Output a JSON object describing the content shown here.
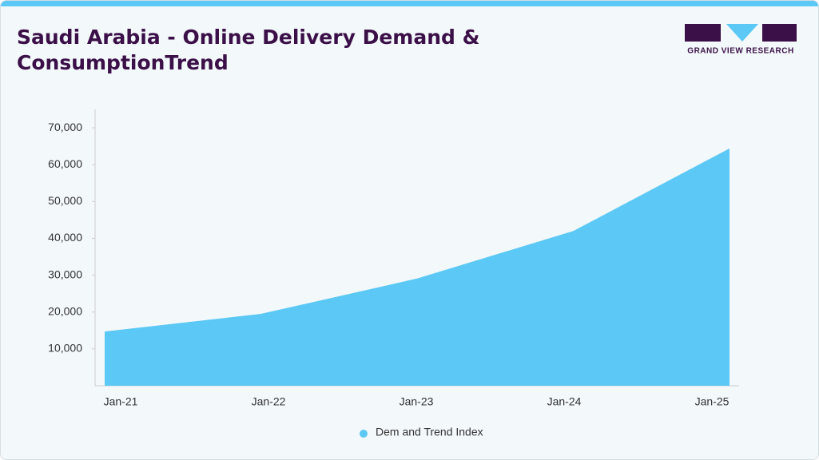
{
  "chart_data": {
    "type": "area",
    "title": "Saudi Arabia - Online Delivery Demand & ConsumptionTrend",
    "brand": "GRAND VIEW RESEARCH",
    "categories": [
      "Jan-21",
      "Jan-22",
      "Jan-23",
      "Jan-24",
      "Jan-25"
    ],
    "series": [
      {
        "name": "Dem and Trend Index",
        "color": "#5bc8f5",
        "values": [
          14700,
          19500,
          29100,
          42000,
          64400
        ]
      }
    ],
    "ylim": [
      0,
      75000
    ],
    "yticks": [
      {
        "value": 10000,
        "label": "10,000"
      },
      {
        "value": 20000,
        "label": "20,000"
      },
      {
        "value": 30000,
        "label": "30,000"
      },
      {
        "value": 40000,
        "label": "40,000"
      },
      {
        "value": 50000,
        "label": "50,000"
      },
      {
        "value": 60000,
        "label": "60,000"
      },
      {
        "value": 70000,
        "label": "70,000"
      }
    ],
    "grid": false
  }
}
